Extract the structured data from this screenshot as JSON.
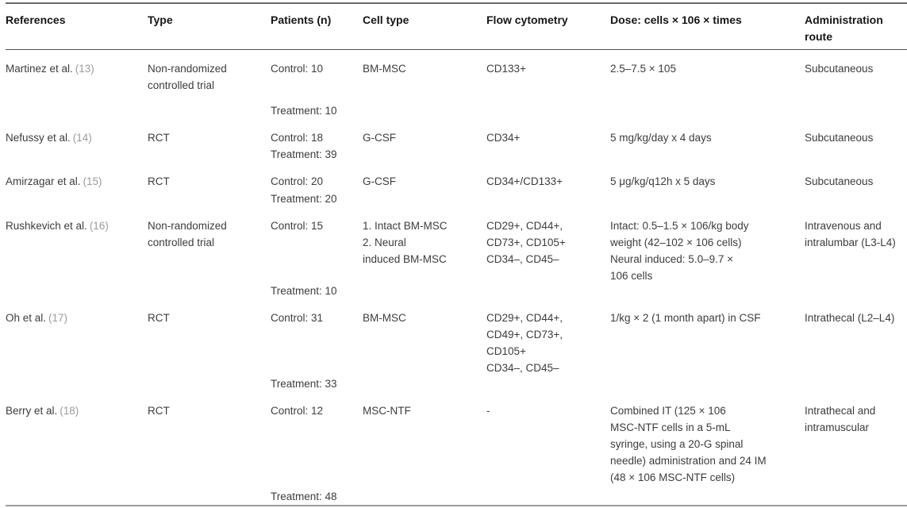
{
  "colors": {
    "body_text": "#3c3c3c",
    "header_text": "#161616",
    "citation_link": "#9b9b9b",
    "rule_top": "#6a6a6a",
    "rule_header_bottom": "#4f4f4f",
    "rule_bottom": "#9c9c9c"
  },
  "table": {
    "columns": [
      "References",
      "Type",
      "Patients (n)",
      "Cell type",
      "Flow cytometry",
      "Dose: cells × 106 × times",
      "Administration route"
    ],
    "rows": [
      {
        "reference": "Martinez et al.",
        "citation": "(13)",
        "type": "Non-randomized\ncontrolled trial",
        "patients_control": "Control: 10",
        "patients_treatment": "Treatment: 10",
        "cell_type": "BM-MSC",
        "flow_cytometry": "CD133+",
        "dose": "2.5–7.5 × 105",
        "route": "Subcutaneous"
      },
      {
        "reference": "Nefussy et al.",
        "citation": "(14)",
        "type": "RCT",
        "patients_control": "Control: 18",
        "patients_treatment": "Treatment: 39",
        "cell_type": "G-CSF",
        "flow_cytometry": "CD34+",
        "dose": "5 mg/kg/day x 4 days",
        "route": "Subcutaneous"
      },
      {
        "reference": "Amirzagar et al.",
        "citation": "(15)",
        "type": "RCT",
        "patients_control": "Control: 20",
        "patients_treatment": "Treatment: 20",
        "cell_type": "G-CSF",
        "flow_cytometry": "CD34+/CD133+",
        "dose": "5 μg/kg/q12h x 5 days",
        "route": "Subcutaneous"
      },
      {
        "reference": "Rushkevich et al.",
        "citation": "(16)",
        "type": "Non-randomized\ncontrolled trial",
        "patients_control": "Control: 15",
        "patients_treatment": "Treatment: 10",
        "cell_type": "1. Intact BM-MSC\n2. Neural\ninduced BM-MSC",
        "flow_cytometry": "CD29+, CD44+,\nCD73+, CD105+\nCD34–, CD45–",
        "dose": "Intact: 0.5–1.5 × 106/kg body\nweight (42–102 × 106 cells)\nNeural induced: 5.0–9.7 ×\n106 cells",
        "route": "Intravenous and\nintralumbar (L3-L4)"
      },
      {
        "reference": "Oh et al.",
        "citation": "(17)",
        "type": "RCT",
        "patients_control": "Control: 31",
        "patients_treatment": "Treatment: 33",
        "cell_type": "BM-MSC",
        "flow_cytometry": "CD29+, CD44+,\nCD49+, CD73+,\nCD105+\nCD34–, CD45–",
        "dose": "1/kg × 2 (1 month apart) in CSF",
        "route": "Intrathecal (L2–L4)"
      },
      {
        "reference": "Berry et al.",
        "citation": "(18)",
        "type": "RCT",
        "patients_control": "Control: 12",
        "patients_treatment": "Treatment: 48",
        "cell_type": "MSC-NTF",
        "flow_cytometry": "-",
        "dose": "Combined IT (125 × 106\nMSC-NTF cells in a 5-mL\nsyringe, using a 20-G spinal\nneedle) administration and 24 IM\n(48 × 106 MSC-NTF cells)",
        "route": "Intrathecal and\nintramuscular"
      }
    ]
  }
}
